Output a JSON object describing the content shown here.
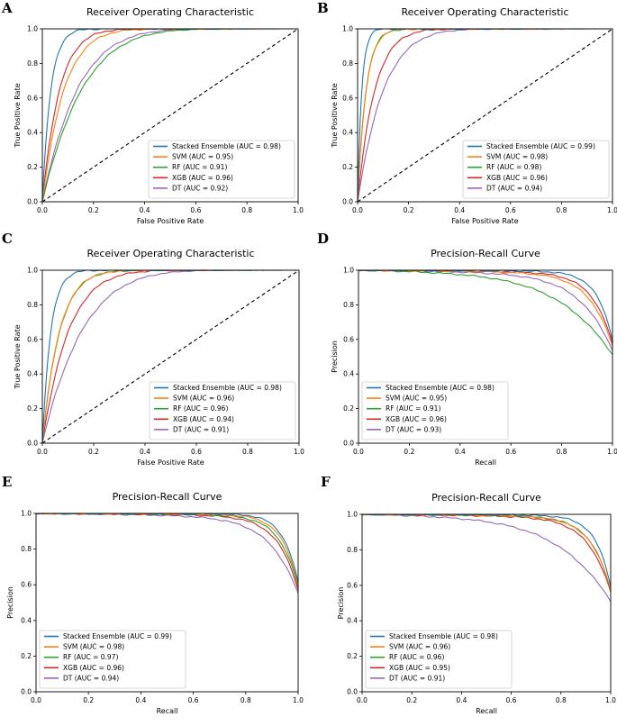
{
  "colors": {
    "ensemble": "#1f77b4",
    "svm": "#ff7f0e",
    "rf": "#2ca02c",
    "xgb": "#d62728",
    "dt": "#9467bd",
    "chance": "#000000"
  },
  "chart_data": [
    {
      "panel": "A",
      "type": "line",
      "title": "Receiver Operating Characteristic",
      "xlabel": "False Positive Rate",
      "ylabel": "True Positive Rate",
      "xlim": [
        0,
        1
      ],
      "ylim": [
        0,
        1
      ],
      "ticks": [
        "0.0",
        "0.2",
        "0.4",
        "0.6",
        "0.8",
        "1.0"
      ],
      "legend_position": "lower-right",
      "chance_line": true,
      "series": [
        {
          "key": "ensemble",
          "name": "Stacked Ensemble (AUC = 0.98)",
          "auc": 0.98
        },
        {
          "key": "svm",
          "name": "SVM (AUC = 0.95)",
          "auc": 0.95
        },
        {
          "key": "rf",
          "name": "RF (AUC = 0.91)",
          "auc": 0.91
        },
        {
          "key": "xgb",
          "name": "XGB (AUC = 0.96)",
          "auc": 0.96
        },
        {
          "key": "dt",
          "name": "DT (AUC = 0.92)",
          "auc": 0.92
        }
      ]
    },
    {
      "panel": "B",
      "type": "line",
      "title": "Receiver Operating Characteristic",
      "xlabel": "False Positive Rate",
      "ylabel": "True Positive Rate",
      "xlim": [
        0,
        1
      ],
      "ylim": [
        0,
        1
      ],
      "ticks": [
        "0.0",
        "0.2",
        "0.4",
        "0.6",
        "0.8",
        "1.0"
      ],
      "legend_position": "lower-right",
      "chance_line": true,
      "series": [
        {
          "key": "ensemble",
          "name": "Stacked Ensemble (AUC = 0.99)",
          "auc": 0.99
        },
        {
          "key": "svm",
          "name": "SVM (AUC = 0.98)",
          "auc": 0.98
        },
        {
          "key": "rf",
          "name": "RF (AUC = 0.98)",
          "auc": 0.98
        },
        {
          "key": "xgb",
          "name": "XGB (AUC = 0.96)",
          "auc": 0.96
        },
        {
          "key": "dt",
          "name": "DT (AUC = 0.94)",
          "auc": 0.94
        }
      ]
    },
    {
      "panel": "C",
      "type": "line",
      "title": "Receiver Operating Characteristic",
      "xlabel": "False Positive Rate",
      "ylabel": "True Positive Rate",
      "xlim": [
        0,
        1
      ],
      "ylim": [
        0,
        1
      ],
      "ticks": [
        "0.0",
        "0.2",
        "0.4",
        "0.6",
        "0.8",
        "1.0"
      ],
      "legend_position": "lower-right",
      "chance_line": true,
      "series": [
        {
          "key": "ensemble",
          "name": "Stacked Ensemble (AUC = 0.98)",
          "auc": 0.98
        },
        {
          "key": "svm",
          "name": "SVM (AUC = 0.96)",
          "auc": 0.96
        },
        {
          "key": "rf",
          "name": "RF (AUC = 0.96)",
          "auc": 0.96
        },
        {
          "key": "xgb",
          "name": "XGB (AUC = 0.94)",
          "auc": 0.94
        },
        {
          "key": "dt",
          "name": "DT (AUC = 0.91)",
          "auc": 0.91
        }
      ]
    },
    {
      "panel": "D",
      "type": "line",
      "title": "Precision-Recall Curve",
      "xlabel": "Recall",
      "ylabel": "Precision",
      "xlim": [
        0,
        1
      ],
      "ylim": [
        0,
        1
      ],
      "ticks": [
        "0.0",
        "0.2",
        "0.4",
        "0.6",
        "0.8",
        "1.0"
      ],
      "legend_position": "lower-left",
      "chance_line": false,
      "series": [
        {
          "key": "ensemble",
          "name": "Stacked Ensemble (AUC = 0.98)",
          "auc": 0.98
        },
        {
          "key": "svm",
          "name": "SVM (AUC = 0.95)",
          "auc": 0.95
        },
        {
          "key": "rf",
          "name": "RF (AUC = 0.91)",
          "auc": 0.91
        },
        {
          "key": "xgb",
          "name": "XGB (AUC = 0.96)",
          "auc": 0.96
        },
        {
          "key": "dt",
          "name": "DT (AUC = 0.93)",
          "auc": 0.93
        }
      ]
    },
    {
      "panel": "E",
      "type": "line",
      "title": "Precision-Recall Curve",
      "xlabel": "Recall",
      "ylabel": "Precision",
      "xlim": [
        0,
        1
      ],
      "ylim": [
        0,
        1
      ],
      "ticks": [
        "0.0",
        "0.2",
        "0.4",
        "0.6",
        "0.8",
        "1.0"
      ],
      "legend_position": "lower-left",
      "chance_line": false,
      "series": [
        {
          "key": "ensemble",
          "name": "Stacked Ensemble (AUC = 0.99)",
          "auc": 0.99
        },
        {
          "key": "svm",
          "name": "SVM (AUC = 0.98)",
          "auc": 0.98
        },
        {
          "key": "rf",
          "name": "RF (AUC = 0.97)",
          "auc": 0.97
        },
        {
          "key": "xgb",
          "name": "XGB (AUC = 0.96)",
          "auc": 0.96
        },
        {
          "key": "dt",
          "name": "DT (AUC = 0.94)",
          "auc": 0.94
        }
      ]
    },
    {
      "panel": "F",
      "type": "line",
      "title": "Precision-Recall Curve",
      "xlabel": "Recall",
      "ylabel": "Precision",
      "xlim": [
        0,
        1
      ],
      "ylim": [
        0,
        1
      ],
      "ticks": [
        "0.0",
        "0.2",
        "0.4",
        "0.6",
        "0.8",
        "1.0"
      ],
      "legend_position": "lower-left",
      "chance_line": false,
      "series": [
        {
          "key": "ensemble",
          "name": "Stacked Ensemble (AUC = 0.98)",
          "auc": 0.98
        },
        {
          "key": "svm",
          "name": "SVM (AUC = 0.96)",
          "auc": 0.96
        },
        {
          "key": "rf",
          "name": "RF (AUC = 0.96)",
          "auc": 0.96
        },
        {
          "key": "xgb",
          "name": "XGB (AUC = 0.95)",
          "auc": 0.95
        },
        {
          "key": "dt",
          "name": "DT (AUC = 0.91)",
          "auc": 0.91
        }
      ]
    }
  ]
}
